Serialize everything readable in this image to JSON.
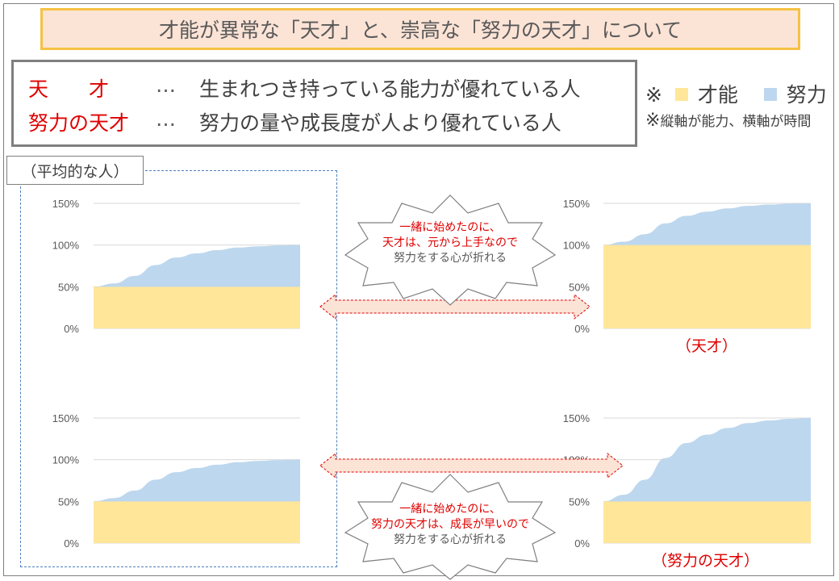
{
  "title": "才能が異常な「天才」と、崇高な「努力の天才」について",
  "definitions": [
    {
      "term": "天　　才",
      "sep": "…",
      "desc": "生まれつき持っている能力が優れている人"
    },
    {
      "term": "努力の天才",
      "sep": "…",
      "desc": "努力の量や成長度が人より優れている人"
    }
  ],
  "legend": {
    "prefix": "※",
    "talent_label": "才能",
    "effort_label": "努力",
    "note_mark": "※",
    "axis_note": "縦軸が能力、横軸が時間",
    "talent_color": "#ffe699",
    "effort_color": "#bdd7ee"
  },
  "average_tag": "（平均的な人）",
  "callouts": {
    "top": {
      "line1": "一緒に始めたのに、",
      "line2": "天才は、元から上手なので",
      "line3": "努力をする心が折れる"
    },
    "bottom": {
      "line1": "一緒に始めたのに、",
      "line2": "努力の天才は、成長が早いので",
      "line3": "努力をする心が折れる"
    }
  },
  "captions": {
    "genius": "（天才）",
    "effort_genius": "（努力の天才）"
  },
  "chart_data": [
    {
      "id": "average-top",
      "type": "area",
      "y_ticks": [
        "0%",
        "50%",
        "100%",
        "150%"
      ],
      "ylim": [
        0,
        150
      ],
      "x": [
        0,
        1,
        2,
        3,
        4,
        5,
        6,
        7,
        8,
        9,
        10
      ],
      "series": [
        {
          "name": "才能",
          "values": [
            50,
            50,
            50,
            50,
            50,
            50,
            50,
            50,
            50,
            50,
            50
          ]
        },
        {
          "name": "努力",
          "values": [
            0,
            4,
            13,
            26,
            35,
            40,
            44,
            47,
            48.5,
            49.5,
            50
          ]
        }
      ]
    },
    {
      "id": "genius",
      "type": "area",
      "y_ticks": [
        "0%",
        "50%",
        "100%",
        "150%"
      ],
      "ylim": [
        0,
        150
      ],
      "x": [
        0,
        1,
        2,
        3,
        4,
        5,
        6,
        7,
        8,
        9,
        10
      ],
      "series": [
        {
          "name": "才能",
          "values": [
            100,
            100,
            100,
            100,
            100,
            100,
            100,
            100,
            100,
            100,
            100
          ]
        },
        {
          "name": "努力",
          "values": [
            0,
            4,
            13,
            26,
            35,
            40,
            44,
            47,
            48.5,
            49.5,
            50
          ]
        }
      ]
    },
    {
      "id": "average-bottom",
      "type": "area",
      "y_ticks": [
        "0%",
        "50%",
        "100%",
        "150%"
      ],
      "ylim": [
        0,
        150
      ],
      "x": [
        0,
        1,
        2,
        3,
        4,
        5,
        6,
        7,
        8,
        9,
        10
      ],
      "series": [
        {
          "name": "才能",
          "values": [
            50,
            50,
            50,
            50,
            50,
            50,
            50,
            50,
            50,
            50,
            50
          ]
        },
        {
          "name": "努力",
          "values": [
            0,
            4,
            13,
            26,
            35,
            40,
            44,
            47,
            48.5,
            49.5,
            50
          ]
        }
      ]
    },
    {
      "id": "effort-genius",
      "type": "area",
      "y_ticks": [
        "0%",
        "50%",
        "100%",
        "150%"
      ],
      "ylim": [
        0,
        150
      ],
      "x": [
        0,
        1,
        2,
        3,
        4,
        5,
        6,
        7,
        8,
        9,
        10
      ],
      "series": [
        {
          "name": "才能",
          "values": [
            50,
            50,
            50,
            50,
            50,
            50,
            50,
            50,
            50,
            50,
            50
          ]
        },
        {
          "name": "努力",
          "values": [
            0,
            8,
            26,
            52,
            70,
            80,
            88,
            94,
            97,
            99,
            100
          ]
        }
      ]
    }
  ]
}
